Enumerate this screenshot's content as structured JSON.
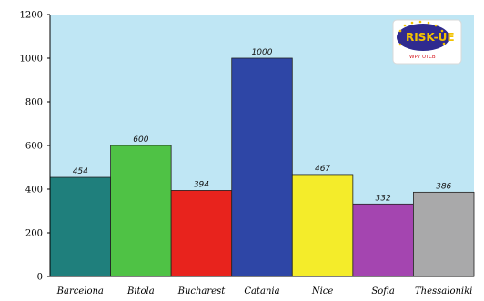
{
  "chart_data": {
    "type": "bar",
    "categories": [
      "Barcelona",
      "Bitola",
      "Bucharest",
      "Catania",
      "Nice",
      "Sofia",
      "Thessaloniki"
    ],
    "values": [
      454,
      600,
      394,
      1000,
      467,
      332,
      386
    ],
    "value_labels": [
      "454",
      "600",
      "394",
      "1000",
      "467",
      "332",
      "386"
    ],
    "colors": [
      "#1f7f7c",
      "#4fc245",
      "#e8231d",
      "#2e46a6",
      "#f4ec2a",
      "#a445b0",
      "#a9a9aa"
    ],
    "title": "",
    "xlabel": "",
    "ylabel": "",
    "ylim": [
      0,
      1200
    ],
    "yticks": [
      "0",
      "200",
      "400",
      "600",
      "800",
      "1000",
      "1200"
    ],
    "grid": false,
    "plot_background": "#bfe6f4"
  },
  "logo": {
    "name": "RISK-UE",
    "subtitle": "WP7 UTCB",
    "colors": {
      "background": "#2f2a8f",
      "text": "#f2c200",
      "subtitle": "#d4141c"
    }
  }
}
